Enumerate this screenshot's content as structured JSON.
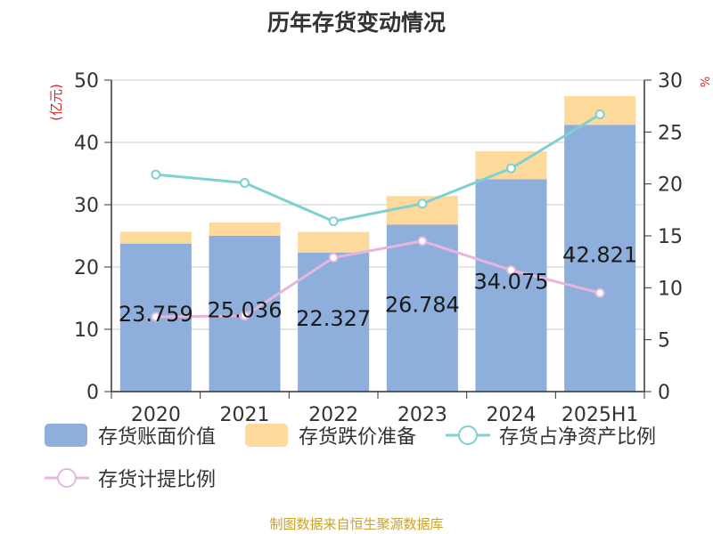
{
  "title": "历年存货变动情况",
  "source": "制图数据来自恒生聚源数据库",
  "chart_data": {
    "type": "bar",
    "stacked": true,
    "categories": [
      "2020",
      "2021",
      "2022",
      "2023",
      "2024",
      "2025H1"
    ],
    "ylabel": "(亿元)",
    "y2label": "%",
    "ylim": [
      0,
      50
    ],
    "y2lim": [
      0,
      30
    ],
    "yticks": [
      "0",
      "10",
      "20",
      "30",
      "40",
      "50"
    ],
    "y2ticks": [
      "0",
      "5",
      "10",
      "15",
      "20",
      "25",
      "30"
    ],
    "grid": true,
    "legend_position": "bottom",
    "series": [
      {
        "name": "存货账面价值",
        "type": "bar",
        "axis": "left",
        "color": "#8eaedb",
        "values": [
          23.759,
          25.036,
          22.327,
          26.784,
          34.075,
          42.821
        ],
        "labels": [
          "23.759",
          "25.036",
          "22.327",
          "26.784",
          "34.075",
          "42.821"
        ]
      },
      {
        "name": "存货跌价准备",
        "type": "bar",
        "axis": "left",
        "color": "#fdd99b",
        "values": [
          1.9,
          2.1,
          3.3,
          4.6,
          4.5,
          4.6
        ]
      },
      {
        "name": "存货占净资产比例",
        "type": "line",
        "axis": "right",
        "color": "#7fd1d1",
        "values": [
          20.9,
          20.1,
          16.4,
          18.1,
          21.5,
          26.7
        ]
      },
      {
        "name": "存货计提比例",
        "type": "line",
        "axis": "right",
        "color": "#e7b6dc",
        "values": [
          7.2,
          7.3,
          12.9,
          14.5,
          11.7,
          9.5
        ]
      }
    ]
  }
}
